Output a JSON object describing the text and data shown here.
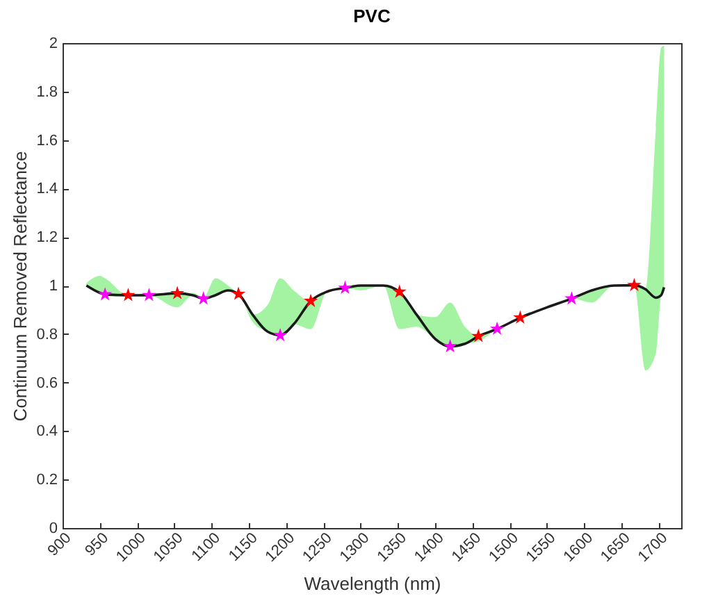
{
  "chart_data": {
    "type": "line",
    "title": "PVC",
    "xlabel": "Wavelength (nm)",
    "ylabel": "Continuum Removed Reflectance",
    "xlim": [
      900,
      1730
    ],
    "ylim": [
      0,
      2
    ],
    "xticks": [
      900,
      950,
      1000,
      1050,
      1100,
      1150,
      1200,
      1250,
      1300,
      1350,
      1400,
      1450,
      1500,
      1550,
      1600,
      1650,
      1700
    ],
    "yticks": [
      0,
      0.2,
      0.4,
      0.6,
      0.8,
      1,
      1.2,
      1.4,
      1.6,
      1.8,
      2
    ],
    "grid": false,
    "series": [
      {
        "type": "line",
        "color": "#1a1a1a",
        "line_style": "solid",
        "marker": "none",
        "x": [
          932,
          950,
          957,
          988,
          1016,
          1054,
          1075,
          1089,
          1105,
          1122,
          1136,
          1155,
          1175,
          1192,
          1210,
          1233,
          1255,
          1279,
          1300,
          1330,
          1352,
          1375,
          1400,
          1420,
          1440,
          1458,
          1483,
          1514,
          1550,
          1583,
          1610,
          1640,
          1667,
          1682,
          1696,
          1703,
          1707
        ],
        "values": [
          1.0,
          0.97,
          0.963,
          0.96,
          0.96,
          0.968,
          0.96,
          0.946,
          0.96,
          0.98,
          0.965,
          0.88,
          0.81,
          0.795,
          0.84,
          0.936,
          0.975,
          0.99,
          1.0,
          1.0,
          0.974,
          0.88,
          0.78,
          0.749,
          0.76,
          0.791,
          0.821,
          0.867,
          0.91,
          0.946,
          0.98,
          1.0,
          1.001,
          0.985,
          0.95,
          0.96,
          0.993
        ],
        "lower": [
          1.0,
          0.97,
          0.963,
          0.96,
          0.96,
          0.91,
          0.96,
          0.946,
          0.96,
          0.98,
          0.965,
          0.85,
          0.81,
          0.795,
          0.84,
          0.82,
          0.975,
          0.99,
          0.98,
          1.0,
          0.82,
          0.83,
          0.78,
          0.749,
          0.76,
          0.77,
          0.821,
          0.867,
          0.91,
          0.946,
          0.93,
          1.0,
          1.001,
          0.65,
          0.72,
          0.96,
          0.993
        ],
        "upper": [
          1.01,
          1.04,
          1.03,
          0.96,
          0.97,
          0.968,
          0.97,
          0.95,
          1.03,
          1.0,
          0.965,
          0.88,
          0.92,
          1.03,
          0.98,
          0.936,
          0.975,
          0.99,
          1.0,
          1.0,
          0.974,
          0.88,
          0.87,
          0.93,
          0.83,
          0.791,
          0.821,
          0.867,
          0.91,
          0.946,
          0.98,
          1.0,
          1.001,
          0.985,
          1.65,
          1.98,
          1.99
        ]
      },
      {
        "type": "scatter",
        "color": "#ff0000",
        "marker": "star",
        "x": [
          988,
          1054,
          1136,
          1233,
          1352,
          1458,
          1514,
          1667
        ],
        "values": [
          0.96,
          0.968,
          0.965,
          0.936,
          0.974,
          0.791,
          0.867,
          1.001
        ]
      },
      {
        "type": "scatter",
        "color": "#ff00ff",
        "marker": "star",
        "x": [
          957,
          1016,
          1089,
          1192,
          1279,
          1420,
          1483,
          1583
        ],
        "values": [
          0.963,
          0.96,
          0.946,
          0.795,
          0.99,
          0.749,
          0.821,
          0.946
        ]
      }
    ]
  }
}
